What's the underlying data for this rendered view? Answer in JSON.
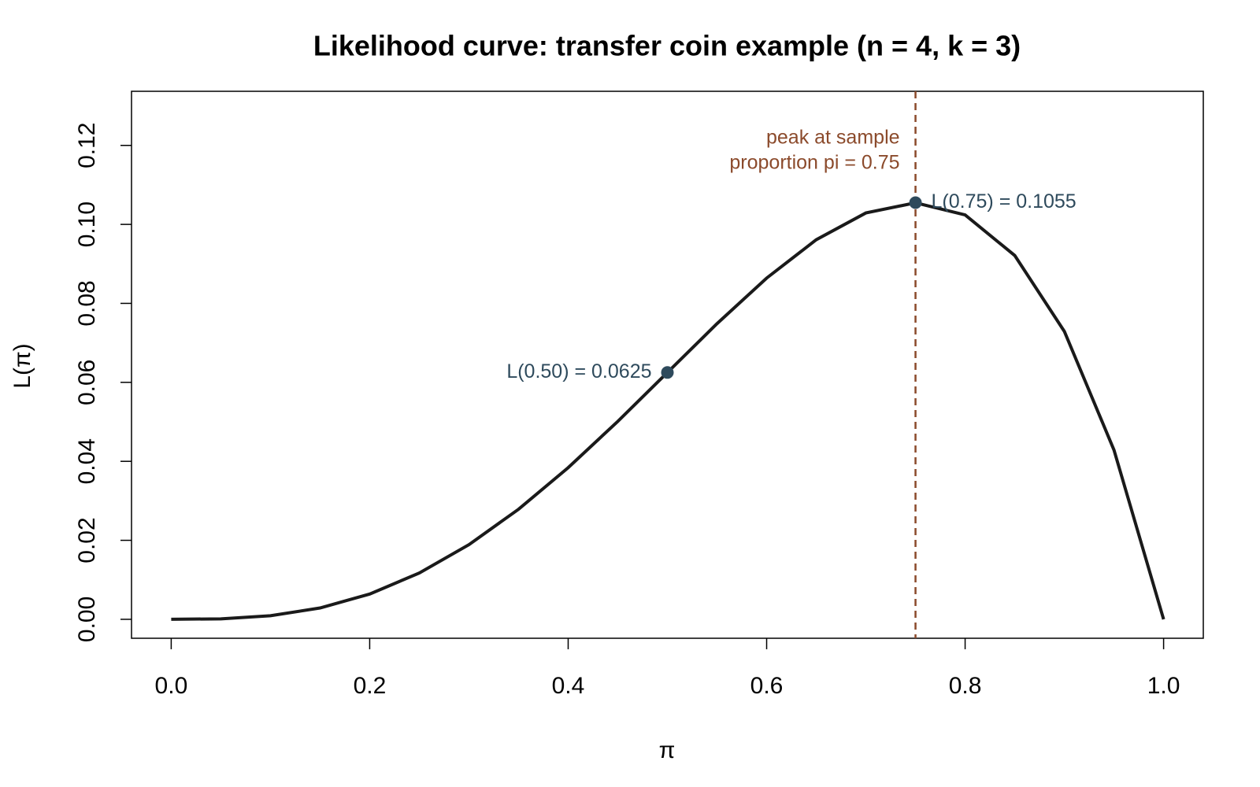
{
  "chart_data": {
    "type": "line",
    "title": "Likelihood curve: transfer coin example (n = 4, k = 3)",
    "x_label": "π",
    "y_label": "L(π)",
    "x": [
      0,
      0.05,
      0.1,
      0.15,
      0.2,
      0.25,
      0.3,
      0.35,
      0.4,
      0.45,
      0.5,
      0.55,
      0.6,
      0.65,
      0.7,
      0.75,
      0.8,
      0.85,
      0.9,
      0.95,
      1.0
    ],
    "series": [
      {
        "color": "#1a1a1a",
        "values": [
          0,
          0.000119,
          0.0009,
          0.002869,
          0.0064,
          0.011719,
          0.0189,
          0.027869,
          0.0384,
          0.050119,
          0.0625,
          0.074869,
          0.0864,
          0.096119,
          0.1029,
          0.105469,
          0.1024,
          0.092119,
          0.0729,
          0.042869,
          0
        ]
      }
    ],
    "points": {
      "x": [
        0.5,
        0.75
      ],
      "values": [
        0.0625,
        0.1055
      ],
      "labels": [
        "L(0.50) = 0.0625",
        "L(0.75) = 0.1055"
      ],
      "color": "#2e4a5c"
    },
    "vline": {
      "x": 0.75,
      "color": "#8b4a2b",
      "annotation": [
        "peak at sample",
        "proportion pi = 0.75"
      ]
    },
    "xlim": [
      -0.04,
      1.04
    ],
    "ylim": [
      -0.0048,
      0.1337
    ],
    "xticks": [
      {
        "value": 0,
        "label": "0.0"
      },
      {
        "value": 0.2,
        "label": "0.2"
      },
      {
        "value": 0.4,
        "label": "0.4"
      },
      {
        "value": 0.6,
        "label": "0.6"
      },
      {
        "value": 0.8,
        "label": "0.8"
      },
      {
        "value": 1,
        "label": "1.0"
      }
    ],
    "yticks": [
      {
        "value": 0,
        "label": "0.00"
      },
      {
        "value": 0.02,
        "label": "0.02"
      },
      {
        "value": 0.04,
        "label": "0.04"
      },
      {
        "value": 0.06,
        "label": "0.06"
      },
      {
        "value": 0.08,
        "label": "0.08"
      },
      {
        "value": 0.1,
        "label": "0.10"
      },
      {
        "value": 0.12,
        "label": "0.12"
      }
    ]
  }
}
